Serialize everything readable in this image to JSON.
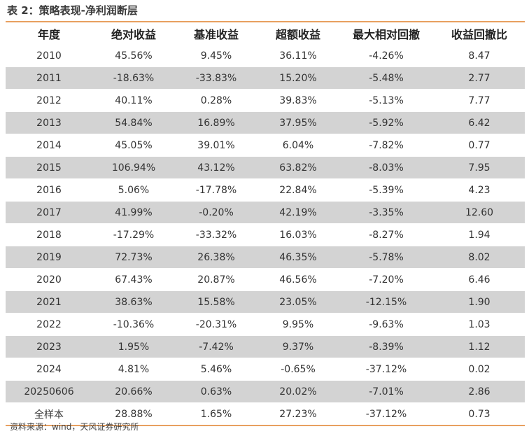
{
  "header": {
    "title": "表 2：策略表现-净利润断层"
  },
  "table": {
    "columns": [
      "年度",
      "绝对收益",
      "基准收益",
      "超额收益",
      "最大相对回撤",
      "收益回撤比"
    ],
    "rows": [
      [
        "2010",
        "45.56%",
        "9.45%",
        "36.11%",
        "-4.26%",
        "8.47"
      ],
      [
        "2011",
        "-18.63%",
        "-33.83%",
        "15.20%",
        "-5.48%",
        "2.77"
      ],
      [
        "2012",
        "40.11%",
        "0.28%",
        "39.83%",
        "-5.13%",
        "7.77"
      ],
      [
        "2013",
        "54.84%",
        "16.89%",
        "37.95%",
        "-5.92%",
        "6.42"
      ],
      [
        "2014",
        "45.05%",
        "39.01%",
        "6.04%",
        "-7.82%",
        "0.77"
      ],
      [
        "2015",
        "106.94%",
        "43.12%",
        "63.82%",
        "-8.03%",
        "7.95"
      ],
      [
        "2016",
        "5.06%",
        "-17.78%",
        "22.84%",
        "-5.39%",
        "4.23"
      ],
      [
        "2017",
        "41.99%",
        "-0.20%",
        "42.19%",
        "-3.35%",
        "12.60"
      ],
      [
        "2018",
        "-17.29%",
        "-33.32%",
        "16.03%",
        "-8.27%",
        "1.94"
      ],
      [
        "2019",
        "72.73%",
        "26.38%",
        "46.35%",
        "-5.78%",
        "8.02"
      ],
      [
        "2020",
        "67.43%",
        "20.87%",
        "46.56%",
        "-7.20%",
        "6.46"
      ],
      [
        "2021",
        "38.63%",
        "15.58%",
        "23.05%",
        "-12.15%",
        "1.90"
      ],
      [
        "2022",
        "-10.36%",
        "-20.31%",
        "9.95%",
        "-9.63%",
        "1.03"
      ],
      [
        "2023",
        "1.95%",
        "-7.42%",
        "9.37%",
        "-8.39%",
        "1.12"
      ],
      [
        "2024",
        "4.81%",
        "5.46%",
        "-0.65%",
        "-37.12%",
        "0.02"
      ],
      [
        "20250606",
        "20.66%",
        "0.63%",
        "20.02%",
        "-7.01%",
        "2.86"
      ],
      [
        "全样本",
        "28.88%",
        "1.65%",
        "27.23%",
        "-37.12%",
        "0.73"
      ]
    ]
  },
  "footer": {
    "source": "资料来源：wind，天风证券研究所"
  }
}
